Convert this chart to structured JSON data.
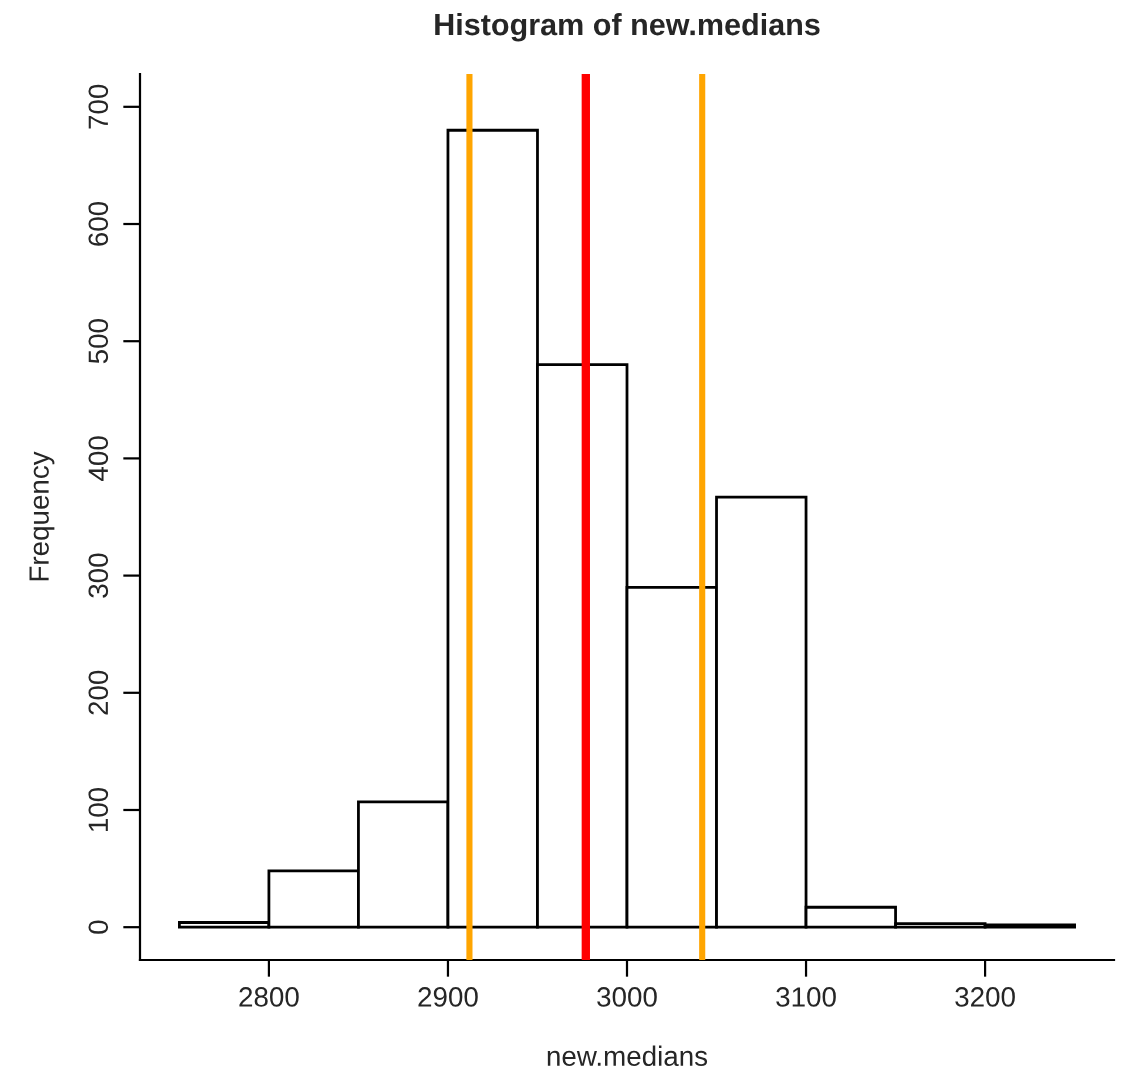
{
  "chart_data": {
    "type": "histogram",
    "title": "Histogram of new.medians",
    "xlabel": "new.medians",
    "ylabel": "Frequency",
    "bins": [
      2750,
      2800,
      2850,
      2900,
      2950,
      3000,
      3050,
      3100,
      3150,
      3200,
      3250
    ],
    "values": [
      4,
      48,
      107,
      680,
      480,
      290,
      367,
      17,
      3,
      2
    ],
    "color": "#ffffff",
    "xlim": [
      2728,
      3272
    ],
    "xticks": [
      2800,
      2900,
      3000,
      3100,
      3200
    ],
    "ylim": [
      -28,
      728
    ],
    "yticks": [
      0,
      100,
      200,
      300,
      400,
      500,
      600,
      700
    ],
    "grid": false,
    "ref_lines": [
      {
        "axis": "x",
        "value": 2912,
        "color": "#ffa500"
      },
      {
        "axis": "x",
        "value": 2977,
        "color": "#ff0000"
      },
      {
        "axis": "x",
        "value": 3042,
        "color": "#ffa500"
      }
    ]
  }
}
